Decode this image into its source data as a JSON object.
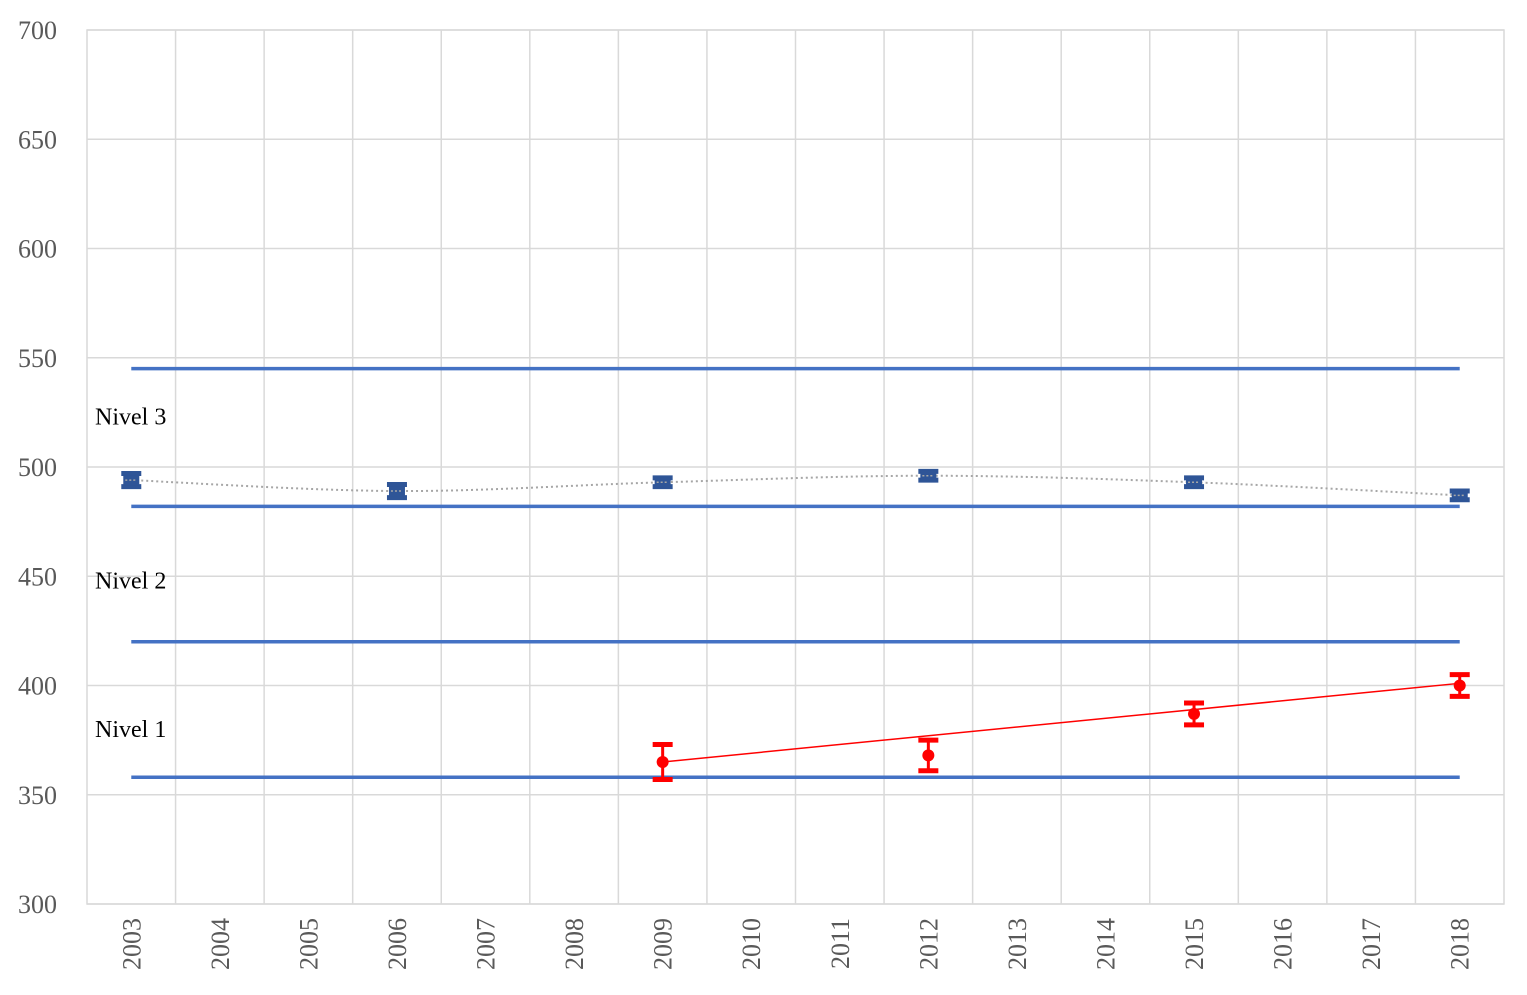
{
  "chart_data": {
    "type": "line",
    "title": "",
    "xlabel": "",
    "ylabel": "",
    "xlim": [
      2003,
      2018
    ],
    "ylim": [
      300,
      700
    ],
    "yticks": [
      300,
      350,
      400,
      450,
      500,
      550,
      600,
      650,
      700
    ],
    "categories": [
      "2003",
      "2004",
      "2005",
      "2006",
      "2007",
      "2008",
      "2009",
      "2010",
      "2011",
      "2012",
      "2013",
      "2014",
      "2015",
      "2016",
      "2017",
      "2018"
    ],
    "grid": true,
    "level_lines": [
      {
        "y": 358,
        "x_from": 2003,
        "x_to": 2018
      },
      {
        "y": 420,
        "x_from": 2003,
        "x_to": 2018
      },
      {
        "y": 482,
        "x_from": 2003,
        "x_to": 2018
      },
      {
        "y": 545,
        "x_from": 2003,
        "x_to": 2018
      }
    ],
    "level_labels": [
      {
        "text": "Nivel 1",
        "y": 380
      },
      {
        "text": "Nivel 2",
        "y": 448
      },
      {
        "text": "Nivel 3",
        "y": 523
      }
    ],
    "series": [
      {
        "color": "#2F5597",
        "marker": "square",
        "trendline": "dotted-curve",
        "trend_color": "#A6A6A6",
        "x": [
          2003,
          2006,
          2009,
          2012,
          2015,
          2018
        ],
        "values": [
          494,
          489,
          493,
          496,
          493,
          487
        ],
        "error": [
          3,
          3,
          2,
          2,
          2,
          2
        ]
      },
      {
        "color": "#FF0000",
        "marker": "circle",
        "trendline": "linear",
        "trend_color": "#FF0000",
        "x": [
          2009,
          2012,
          2015,
          2018
        ],
        "values": [
          365,
          368,
          387,
          400
        ],
        "error": [
          8,
          7,
          5,
          5
        ]
      }
    ],
    "trend_red": {
      "x": [
        2009,
        2018
      ],
      "values": [
        365,
        401
      ]
    }
  }
}
